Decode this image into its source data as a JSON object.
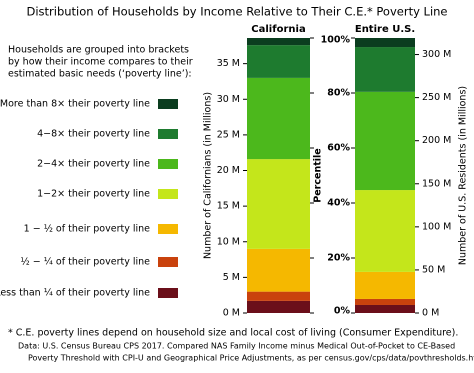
{
  "title": "Distribution of Households by Income Relative to Their C.E.* Poverty Line",
  "legend_title": [
    "Households are grouped into brackets",
    "by how their income compares to their",
    "estimated basic needs (‘poverty line’):"
  ],
  "notes": [
    "* C.E. poverty lines depend on household size and local cost of living (Consumer Expenditure).",
    "Data: U.S. Census Bureau CPS 2017. Compared NAS Family Income minus Medical Out-of-Pocket to CE-Based",
    "Poverty Threshold with CPI-U and Geographical Price Adjustments, as per census.gov/cps/data/povthresholds.html."
  ],
  "chart_data": [
    {
      "type": "stacked-bar",
      "categories": [
        "California"
      ],
      "ylabel": "Number of Californians (in Millions)",
      "ylim": [
        0,
        38.6
      ],
      "yticks": [
        {
          "value": 0,
          "label": "0 M"
        },
        {
          "value": 5,
          "label": "5 M"
        },
        {
          "value": 10,
          "label": "10 M"
        },
        {
          "value": 15,
          "label": "15 M"
        },
        {
          "value": 20,
          "label": "20 M"
        },
        {
          "value": 25,
          "label": "25 M"
        },
        {
          "value": 30,
          "label": "30 M"
        },
        {
          "value": 35,
          "label": "35 M"
        }
      ],
      "y2label": "Percentile",
      "y2lim": [
        0,
        100
      ],
      "y2ticks": [
        {
          "value": 0,
          "label": "0%"
        },
        {
          "value": 20,
          "label": "20%"
        },
        {
          "value": 40,
          "label": "40%"
        },
        {
          "value": 60,
          "label": "60%"
        },
        {
          "value": 80,
          "label": "80%"
        },
        {
          "value": 100,
          "label": "100%"
        }
      ],
      "series": [
        {
          "name": "Less than ¼ of their poverty line",
          "color": "#6b0f1a",
          "values": [
            1.7
          ]
        },
        {
          "name": "½ − ¼ of their poverty line",
          "color": "#c9420d",
          "values": [
            1.3
          ]
        },
        {
          "name": "1 − ½ of their poverty line",
          "color": "#f5b800",
          "values": [
            6.0
          ]
        },
        {
          "name": "1−2× their poverty line",
          "color": "#c4e61b",
          "values": [
            12.6
          ]
        },
        {
          "name": "2−4× their poverty line",
          "color": "#4cb81c",
          "values": [
            11.4
          ]
        },
        {
          "name": "4−8× their poverty line",
          "color": "#1e7b2f",
          "values": [
            4.6
          ]
        },
        {
          "name": "More than 8× their poverty line",
          "color": "#0b3d1f",
          "values": [
            1.0
          ]
        }
      ]
    },
    {
      "type": "stacked-bar",
      "categories": [
        "Entire U.S."
      ],
      "ylabel": "Number of U.S. Residents (in Millions)",
      "ylim": [
        0,
        319.2
      ],
      "yticks": [
        {
          "value": 0,
          "label": "0 M"
        },
        {
          "value": 50,
          "label": "50 M"
        },
        {
          "value": 100,
          "label": "100 M"
        },
        {
          "value": 150,
          "label": "150 M"
        },
        {
          "value": 200,
          "label": "200 M"
        },
        {
          "value": 250,
          "label": "250 M"
        },
        {
          "value": 300,
          "label": "300 M"
        }
      ],
      "series": [
        {
          "color": "#6b0f1a",
          "values": [
            9.3
          ]
        },
        {
          "color": "#c9420d",
          "values": [
            7.0
          ]
        },
        {
          "color": "#f5b800",
          "values": [
            31.4
          ]
        },
        {
          "color": "#c4e61b",
          "values": [
            95.0
          ]
        },
        {
          "color": "#4cb81c",
          "values": [
            114.0
          ]
        },
        {
          "color": "#1e7b2f",
          "values": [
            52.0
          ]
        },
        {
          "color": "#0b3d1f",
          "values": [
            10.5
          ]
        }
      ]
    }
  ]
}
